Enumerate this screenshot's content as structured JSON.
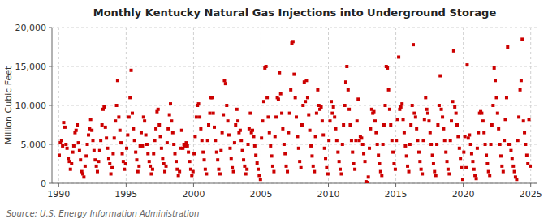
{
  "chart_data": {
    "type": "scatter",
    "title": "Monthly Kentucky Natural Gas Injections into Underground Storage",
    "y_label": "Million Cubic Feet",
    "annotations": [
      "Source: U.S. Energy Information Administration"
    ],
    "color": "#cc0000",
    "marker": "square",
    "grid": true,
    "xlim": [
      1989.5,
      2025.5
    ],
    "ylim": [
      0,
      20000
    ],
    "xticks": [
      1990,
      1995,
      2000,
      2005,
      2010,
      2015,
      2020,
      2025
    ],
    "yticks": [
      0,
      {
        "value": 5000,
        "label": "5,000"
      },
      {
        "value": 10000,
        "label": "10,000"
      },
      {
        "value": 15000,
        "label": "15,000"
      },
      {
        "value": 20000,
        "label": "20,000"
      }
    ],
    "x": [
      1990.04,
      1990.12,
      1990.21,
      1990.29,
      1990.37,
      1990.46,
      1990.54,
      1990.62,
      1990.71,
      1990.79,
      1990.87,
      1990.96,
      1991.04,
      1991.12,
      1991.21,
      1991.29,
      1991.37,
      1991.46,
      1991.54,
      1991.62,
      1991.71,
      1991.79,
      1991.87,
      1991.96,
      1992.04,
      1992.12,
      1992.21,
      1992.29,
      1992.37,
      1992.46,
      1992.54,
      1992.62,
      1992.71,
      1992.79,
      1992.87,
      1992.96,
      1993.04,
      1993.12,
      1993.21,
      1993.29,
      1993.37,
      1993.46,
      1993.54,
      1993.62,
      1993.71,
      1993.79,
      1993.87,
      1993.96,
      1994.04,
      1994.12,
      1994.21,
      1994.29,
      1994.37,
      1994.46,
      1994.54,
      1994.62,
      1994.71,
      1994.79,
      1994.87,
      1994.96,
      1995.04,
      1995.12,
      1995.21,
      1995.29,
      1995.37,
      1995.46,
      1995.54,
      1995.62,
      1995.71,
      1995.79,
      1995.87,
      1995.96,
      1996.04,
      1996.12,
      1996.21,
      1996.29,
      1996.37,
      1996.46,
      1996.54,
      1996.62,
      1996.71,
      1996.79,
      1996.87,
      1996.96,
      1997.04,
      1997.12,
      1997.21,
      1997.29,
      1997.37,
      1997.46,
      1997.54,
      1997.62,
      1997.71,
      1997.79,
      1997.87,
      1997.96,
      1998.04,
      1998.12,
      1998.21,
      1998.29,
      1998.37,
      1998.46,
      1998.54,
      1998.62,
      1998.71,
      1998.79,
      1998.87,
      1998.96,
      1999.04,
      1999.12,
      1999.21,
      1999.29,
      1999.37,
      1999.46,
      1999.54,
      1999.62,
      1999.71,
      1999.79,
      1999.87,
      1999.96,
      2000.04,
      2000.12,
      2000.21,
      2000.29,
      2000.37,
      2000.46,
      2000.54,
      2000.62,
      2000.71,
      2000.79,
      2000.87,
      2000.96,
      2001.04,
      2001.12,
      2001.21,
      2001.29,
      2001.37,
      2001.46,
      2001.54,
      2001.62,
      2001.71,
      2001.79,
      2001.87,
      2001.96,
      2002.04,
      2002.12,
      2002.21,
      2002.29,
      2002.37,
      2002.46,
      2002.54,
      2002.62,
      2002.71,
      2002.79,
      2002.87,
      2002.96,
      2003.04,
      2003.12,
      2003.21,
      2003.29,
      2003.37,
      2003.46,
      2003.54,
      2003.62,
      2003.71,
      2003.79,
      2003.87,
      2003.96,
      2004.04,
      2004.12,
      2004.21,
      2004.29,
      2004.37,
      2004.46,
      2004.54,
      2004.62,
      2004.71,
      2004.79,
      2004.87,
      2004.96,
      2005.04,
      2005.12,
      2005.21,
      2005.29,
      2005.37,
      2005.46,
      2005.54,
      2005.62,
      2005.71,
      2005.79,
      2005.87,
      2005.96,
      2006.04,
      2006.12,
      2006.21,
      2006.29,
      2006.37,
      2006.46,
      2006.54,
      2006.62,
      2006.71,
      2006.79,
      2006.87,
      2006.96,
      2007.04,
      2007.12,
      2007.21,
      2007.29,
      2007.37,
      2007.46,
      2007.54,
      2007.62,
      2007.71,
      2007.79,
      2007.87,
      2007.96,
      2008.04,
      2008.12,
      2008.21,
      2008.29,
      2008.37,
      2008.46,
      2008.54,
      2008.62,
      2008.71,
      2008.79,
      2008.87,
      2008.96,
      2009.04,
      2009.12,
      2009.21,
      2009.29,
      2009.37,
      2009.46,
      2009.54,
      2009.62,
      2009.71,
      2009.79,
      2009.87,
      2009.96,
      2010.04,
      2010.12,
      2010.21,
      2010.29,
      2010.37,
      2010.46,
      2010.54,
      2010.62,
      2010.71,
      2010.79,
      2010.87,
      2010.96,
      2011.04,
      2011.12,
      2011.21,
      2011.29,
      2011.37,
      2011.46,
      2011.54,
      2011.62,
      2011.71,
      2011.79,
      2011.87,
      2011.96,
      2012.04,
      2012.12,
      2012.21,
      2012.29,
      2012.37,
      2012.46,
      2012.54,
      2012.62,
      2012.71,
      2012.79,
      2012.87,
      2012.96,
      2013.04,
      2013.12,
      2013.21,
      2013.29,
      2013.37,
      2013.46,
      2013.54,
      2013.62,
      2013.71,
      2013.79,
      2013.87,
      2013.96,
      2014.04,
      2014.12,
      2014.21,
      2014.29,
      2014.37,
      2014.46,
      2014.54,
      2014.62,
      2014.71,
      2014.79,
      2014.87,
      2014.96,
      2015.04,
      2015.12,
      2015.21,
      2015.29,
      2015.37,
      2015.46,
      2015.54,
      2015.62,
      2015.71,
      2015.79,
      2015.87,
      2015.96,
      2016.04,
      2016.12,
      2016.21,
      2016.29,
      2016.37,
      2016.46,
      2016.54,
      2016.62,
      2016.71,
      2016.79,
      2016.87,
      2016.96,
      2017.04,
      2017.12,
      2017.21,
      2017.29,
      2017.37,
      2017.46,
      2017.54,
      2017.62,
      2017.71,
      2017.79,
      2017.87,
      2017.96,
      2018.04,
      2018.12,
      2018.21,
      2018.29,
      2018.37,
      2018.46,
      2018.54,
      2018.62,
      2018.71,
      2018.79,
      2018.87,
      2018.96,
      2019.04,
      2019.12,
      2019.21,
      2019.29,
      2019.37,
      2019.46,
      2019.54,
      2019.62,
      2019.71,
      2019.79,
      2019.87,
      2019.96,
      2020.04,
      2020.12,
      2020.21,
      2020.29,
      2020.37,
      2020.46,
      2020.54,
      2020.62,
      2020.71,
      2020.79,
      2020.87,
      2020.96,
      2021.04,
      2021.12,
      2021.21,
      2021.29,
      2021.37,
      2021.46,
      2021.54,
      2021.62,
      2021.71,
      2021.79,
      2021.87,
      2021.96,
      2022.04,
      2022.12,
      2022.21,
      2022.29,
      2022.37,
      2022.46,
      2022.54,
      2022.62,
      2022.71,
      2022.79,
      2022.87,
      2022.96,
      2023.04,
      2023.12,
      2023.21,
      2023.29,
      2023.37,
      2023.46,
      2023.54,
      2023.62,
      2023.71,
      2023.79,
      2023.87,
      2023.96,
      2024.04,
      2024.12,
      2024.21,
      2024.29,
      2024.37,
      2024.46,
      2024.54,
      2024.62,
      2024.71,
      2024.79,
      2024.87,
      2024.96
    ],
    "values": [
      3600,
      5200,
      5500,
      4800,
      7800,
      7200,
      5000,
      4500,
      3200,
      2800,
      1800,
      2500,
      4000,
      4800,
      6500,
      6800,
      7500,
      5200,
      4200,
      3000,
      1500,
      1200,
      800,
      2200,
      3500,
      5000,
      6200,
      7000,
      8200,
      6800,
      5500,
      4200,
      3000,
      2200,
      1500,
      2800,
      4200,
      5500,
      7500,
      9500,
      9800,
      7200,
      5800,
      4500,
      3200,
      2500,
      1200,
      2000,
      3800,
      5800,
      8000,
      10000,
      13200,
      8500,
      6800,
      5200,
      3800,
      2800,
      1800,
      2500,
      4500,
      6200,
      8500,
      11000,
      14500,
      9000,
      7000,
      5500,
      4000,
      3000,
      1500,
      2200,
      4800,
      6500,
      4800,
      8500,
      8000,
      6200,
      5000,
      3800,
      2800,
      2200,
      1200,
      1800,
      3800,
      5500,
      7000,
      9200,
      9500,
      7500,
      6000,
      4500,
      3200,
      2500,
      1500,
      2200,
      5200,
      7000,
      8800,
      10200,
      8000,
      6500,
      5000,
      3800,
      2800,
      1800,
      1000,
      1500,
      4500,
      6800,
      4500,
      5000,
      4800,
      5200,
      4800,
      4000,
      2800,
      1800,
      1000,
      1500,
      3800,
      6000,
      8500,
      10000,
      10200,
      8500,
      7000,
      5500,
      4000,
      3000,
      1800,
      1200,
      5500,
      7500,
      9000,
      11000,
      11000,
      9000,
      7200,
      5500,
      4000,
      3000,
      1800,
      1200,
      4200,
      6500,
      8800,
      13200,
      12800,
      10000,
      8000,
      6200,
      4500,
      3200,
      2000,
      1500,
      5200,
      7500,
      9500,
      8000,
      6500,
      6800,
      5500,
      4200,
      3000,
      2200,
      1200,
      1800,
      5000,
      7000,
      9000,
      6500,
      6800,
      6000,
      4800,
      3600,
      2600,
      1800,
      1000,
      500,
      5800,
      8000,
      10500,
      14800,
      15000,
      11000,
      8500,
      6500,
      4800,
      3500,
      2200,
      1500,
      6000,
      8500,
      11000,
      10800,
      14200,
      11500,
      9000,
      7000,
      5000,
      3800,
      2200,
      1500,
      6500,
      9000,
      12000,
      18000,
      18200,
      14000,
      11000,
      8500,
      6000,
      4500,
      2800,
      2000,
      7500,
      10000,
      13000,
      10500,
      13200,
      11000,
      8800,
      6800,
      4800,
      3500,
      2200,
      1500,
      6000,
      9000,
      12000,
      10000,
      9500,
      9800,
      8000,
      6200,
      4500,
      3200,
      2000,
      1200,
      5500,
      8000,
      10500,
      9000,
      9800,
      8500,
      7000,
      5500,
      4000,
      2800,
      1800,
      1200,
      5000,
      7500,
      10000,
      13000,
      15000,
      12000,
      9500,
      7500,
      5500,
      4000,
      2500,
      1800,
      5500,
      8000,
      10800,
      5500,
      6000,
      5800,
      5000,
      3800,
      2800,
      200,
      100,
      800,
      4500,
      7000,
      9500,
      9000,
      9200,
      8000,
      6500,
      5000,
      3600,
      2500,
      1500,
      1000,
      5000,
      7500,
      10000,
      15000,
      14800,
      12000,
      9500,
      7500,
      5500,
      4000,
      2500,
      1800,
      5500,
      8200,
      16200,
      9500,
      9800,
      10200,
      8200,
      6500,
      4800,
      3500,
      2200,
      1500,
      5000,
      7500,
      10000,
      17800,
      9000,
      8500,
      7000,
      5500,
      4000,
      2800,
      1800,
      1200,
      5500,
      8200,
      11000,
      9500,
      9000,
      8000,
      6500,
      5000,
      3600,
      2500,
      1500,
      1000,
      5000,
      7500,
      10000,
      13800,
      9500,
      8500,
      7000,
      5500,
      4000,
      2800,
      1800,
      1200,
      5500,
      8000,
      10500,
      17000,
      9800,
      9000,
      7500,
      6000,
      4500,
      3200,
      2000,
      500,
      4000,
      6000,
      2000,
      15200,
      5800,
      6200,
      5000,
      3800,
      2800,
      1800,
      1000,
      600,
      4500,
      6500,
      9000,
      9200,
      9000,
      8000,
      6500,
      5000,
      3600,
      2500,
      1500,
      1000,
      5000,
      7500,
      10000,
      14800,
      13200,
      11000,
      9000,
      7000,
      5000,
      3500,
      2200,
      1500,
      5500,
      8200,
      11000,
      17500,
      5000,
      5000,
      4200,
      3200,
      2200,
      1500,
      800,
      500,
      5500,
      8500,
      12000,
      13200,
      18500,
      8000,
      6500,
      5000,
      3600,
      2500,
      8200,
      2200
    ]
  }
}
